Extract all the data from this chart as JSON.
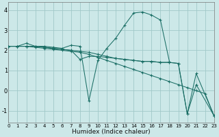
{
  "background_color": "#cce8e8",
  "grid_color": "#a0c8c8",
  "line_color": "#1a6e65",
  "xlabel": "Humidex (Indice chaleur)",
  "xlim": [
    0,
    23
  ],
  "ylim": [
    -1.6,
    4.4
  ],
  "yticks": [
    -1,
    0,
    1,
    2,
    3,
    4
  ],
  "xticks": [
    0,
    1,
    2,
    3,
    4,
    5,
    6,
    7,
    8,
    9,
    10,
    11,
    12,
    13,
    14,
    15,
    16,
    17,
    18,
    19,
    20,
    21,
    22,
    23
  ],
  "series": [
    {
      "x": [
        0,
        1,
        2,
        3,
        4,
        5,
        6,
        7,
        8,
        9,
        10,
        11,
        12,
        13,
        14,
        15,
        16,
        17,
        18,
        19,
        20,
        21,
        22,
        23
      ],
      "y": [
        2.2,
        2.2,
        2.2,
        2.15,
        2.1,
        2.05,
        2.0,
        1.95,
        1.9,
        1.8,
        1.65,
        1.5,
        1.35,
        1.2,
        1.05,
        0.9,
        0.75,
        0.6,
        0.45,
        0.3,
        0.15,
        0.0,
        -0.15,
        -1.25
      ]
    },
    {
      "x": [
        0,
        1,
        2,
        3,
        4,
        5,
        6,
        7,
        8,
        9,
        10,
        11,
        12,
        13,
        14,
        15,
        16,
        17,
        18
      ],
      "y": [
        2.2,
        2.2,
        2.35,
        2.2,
        2.2,
        2.15,
        2.1,
        2.25,
        2.2,
        -0.5,
        1.5,
        2.1,
        2.6,
        3.25,
        3.85,
        3.9,
        3.75,
        3.5,
        1.45
      ]
    },
    {
      "x": [
        0,
        1,
        2,
        3,
        4,
        5,
        6,
        7,
        8,
        9,
        10,
        11,
        12,
        13,
        14,
        15,
        16,
        17,
        18,
        19,
        20,
        21,
        23
      ],
      "y": [
        2.2,
        2.2,
        2.2,
        2.2,
        2.15,
        2.1,
        2.05,
        2.0,
        1.95,
        1.9,
        1.8,
        1.7,
        1.6,
        1.55,
        1.5,
        1.45,
        1.45,
        1.4,
        1.4,
        1.35,
        -1.15,
        0.3,
        -1.25
      ]
    },
    {
      "x": [
        0,
        1,
        2,
        3,
        4,
        5,
        6,
        7,
        8,
        9,
        10,
        11,
        12,
        13,
        14,
        15,
        16,
        17,
        18,
        19,
        20,
        21,
        23
      ],
      "y": [
        2.2,
        2.2,
        2.2,
        2.2,
        2.15,
        2.1,
        2.05,
        2.0,
        1.55,
        1.7,
        1.7,
        1.65,
        1.6,
        1.55,
        1.5,
        1.45,
        1.45,
        1.4,
        1.4,
        1.35,
        -1.15,
        0.85,
        -1.25
      ]
    }
  ]
}
